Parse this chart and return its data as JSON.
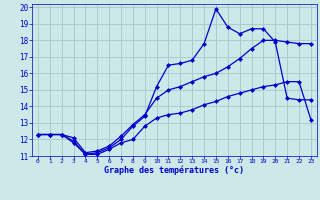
{
  "xlabel": "Graphe des températures (°c)",
  "background_color": "#cce8e8",
  "grid_color": "#aacccc",
  "line_color": "#0000cc",
  "xlim": [
    -0.5,
    23.5
  ],
  "ylim": [
    11,
    20.2
  ],
  "xticks": [
    0,
    1,
    2,
    3,
    4,
    5,
    6,
    7,
    8,
    9,
    10,
    11,
    12,
    13,
    14,
    15,
    16,
    17,
    18,
    19,
    20,
    21,
    22,
    23
  ],
  "yticks": [
    11,
    12,
    13,
    14,
    15,
    16,
    17,
    18,
    19,
    20
  ],
  "series1_x": [
    0,
    1,
    2,
    3,
    4,
    5,
    6,
    7,
    8,
    9,
    10,
    11,
    12,
    13,
    14,
    15,
    16,
    17,
    18,
    19,
    20,
    21,
    22,
    23
  ],
  "series1_y": [
    12.3,
    12.3,
    12.3,
    11.8,
    11.1,
    11.1,
    11.4,
    11.8,
    12.0,
    12.8,
    13.3,
    13.5,
    13.6,
    13.8,
    14.1,
    14.3,
    14.6,
    14.8,
    15.0,
    15.2,
    15.3,
    15.5,
    15.5,
    13.2
  ],
  "series2_x": [
    0,
    1,
    2,
    3,
    4,
    5,
    6,
    7,
    8,
    9,
    10,
    11,
    12,
    13,
    14,
    15,
    16,
    17,
    18,
    19,
    20,
    21,
    22,
    23
  ],
  "series2_y": [
    12.3,
    12.3,
    12.3,
    11.9,
    11.1,
    11.2,
    11.5,
    12.0,
    12.8,
    13.4,
    15.2,
    16.5,
    16.6,
    16.8,
    17.8,
    19.9,
    18.8,
    18.4,
    18.7,
    18.7,
    17.9,
    14.5,
    14.4,
    14.4
  ],
  "series3_x": [
    0,
    1,
    2,
    3,
    4,
    5,
    6,
    7,
    8,
    9,
    10,
    11,
    12,
    13,
    14,
    15,
    16,
    17,
    18,
    19,
    20,
    21,
    22,
    23
  ],
  "series3_y": [
    12.3,
    12.3,
    12.3,
    12.1,
    11.2,
    11.3,
    11.6,
    12.2,
    12.9,
    13.5,
    14.5,
    15.0,
    15.2,
    15.5,
    15.8,
    16.0,
    16.4,
    16.9,
    17.5,
    18.0,
    18.0,
    17.9,
    17.8,
    17.8
  ]
}
